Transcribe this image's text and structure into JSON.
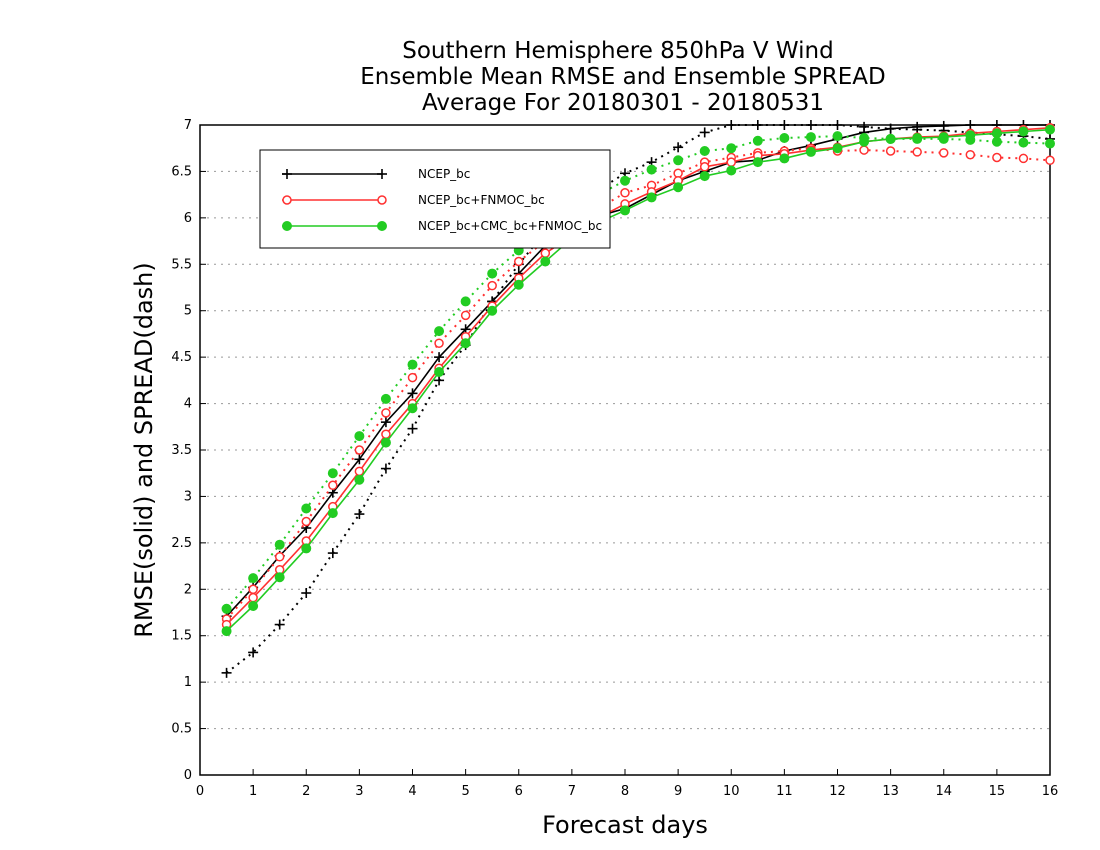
{
  "chart_data": {
    "type": "line",
    "title_lines": [
      "Southern Hemisphere 850hPa V Wind",
      "Ensemble Mean RMSE and Ensemble SPREAD",
      "Average For 20180301 - 20180531"
    ],
    "xlabel": "Forecast days",
    "ylabel": "RMSE(solid) and SPREAD(dash)",
    "xlim": [
      0,
      16
    ],
    "ylim": [
      0,
      7
    ],
    "x_ticks": [
      "0",
      "1",
      "2",
      "3",
      "4",
      "5",
      "6",
      "7",
      "8",
      "9",
      "10",
      "11",
      "12",
      "13",
      "14",
      "15",
      "16"
    ],
    "y_ticks": [
      "0",
      "0.5",
      "1",
      "1.5",
      "2",
      "2.5",
      "3",
      "3.5",
      "4",
      "4.5",
      "5",
      "5.5",
      "6",
      "6.5",
      "7"
    ],
    "grid": "horizontal dotted",
    "legend_position": "top-left",
    "x": [
      0.5,
      1,
      1.5,
      2,
      2.5,
      3,
      3.5,
      4,
      4.5,
      5,
      5.5,
      6,
      6.5,
      7,
      7.5,
      8,
      8.5,
      9,
      9.5,
      10,
      10.5,
      11,
      11.5,
      12,
      12.5,
      13,
      13.5,
      14,
      14.5,
      15,
      15.5,
      16
    ],
    "series": [
      {
        "name": "NCEP_bc",
        "color": "#000000",
        "marker": "plus",
        "rmse": [
          1.71,
          2.02,
          2.36,
          2.66,
          3.04,
          3.4,
          3.8,
          4.11,
          4.5,
          4.8,
          5.1,
          5.4,
          5.7,
          5.93,
          6.02,
          6.1,
          6.25,
          6.4,
          6.5,
          6.6,
          6.62,
          6.72,
          6.78,
          6.85,
          6.92,
          6.96,
          6.98,
          6.99,
          7.0,
          7.0,
          7.0,
          7.0
        ],
        "spread": [
          1.1,
          1.32,
          1.62,
          1.96,
          2.39,
          2.81,
          3.3,
          3.73,
          4.25,
          4.63,
          5.1,
          5.5,
          5.85,
          6.1,
          6.3,
          6.48,
          6.6,
          6.76,
          6.92,
          7.0,
          7.0,
          7.0,
          7.0,
          7.0,
          6.98,
          6.96,
          6.95,
          6.94,
          6.92,
          6.9,
          6.88,
          6.85
        ]
      },
      {
        "name": "NCEP_bc+FNMOC_bc",
        "color": "#ff3030",
        "marker": "open-circle",
        "rmse": [
          1.62,
          1.91,
          2.21,
          2.52,
          2.89,
          3.27,
          3.67,
          4.0,
          4.38,
          4.72,
          5.05,
          5.35,
          5.62,
          5.8,
          6.0,
          6.15,
          6.28,
          6.4,
          6.55,
          6.6,
          6.67,
          6.69,
          6.73,
          6.76,
          6.82,
          6.85,
          6.87,
          6.88,
          6.91,
          6.93,
          6.95,
          6.97
        ],
        "spread": [
          1.68,
          2.0,
          2.35,
          2.73,
          3.12,
          3.5,
          3.9,
          4.28,
          4.65,
          4.95,
          5.27,
          5.53,
          5.75,
          5.95,
          6.1,
          6.27,
          6.35,
          6.48,
          6.6,
          6.65,
          6.7,
          6.72,
          6.75,
          6.72,
          6.73,
          6.72,
          6.71,
          6.7,
          6.68,
          6.65,
          6.64,
          6.62
        ]
      },
      {
        "name": "NCEP_bc+CMC_bc+FNMOC_bc",
        "color": "#22cc22",
        "marker": "filled-circle",
        "rmse": [
          1.55,
          1.82,
          2.13,
          2.44,
          2.82,
          3.18,
          3.58,
          3.95,
          4.34,
          4.65,
          5.0,
          5.28,
          5.53,
          5.78,
          5.95,
          6.08,
          6.22,
          6.33,
          6.45,
          6.51,
          6.6,
          6.64,
          6.71,
          6.75,
          6.82,
          6.85,
          6.86,
          6.87,
          6.89,
          6.91,
          6.93,
          6.95
        ],
        "spread": [
          1.79,
          2.12,
          2.48,
          2.87,
          3.25,
          3.65,
          4.05,
          4.42,
          4.78,
          5.1,
          5.4,
          5.65,
          5.87,
          6.05,
          6.25,
          6.4,
          6.52,
          6.62,
          6.72,
          6.75,
          6.83,
          6.86,
          6.87,
          6.88,
          6.86,
          6.85,
          6.85,
          6.85,
          6.84,
          6.82,
          6.81,
          6.8
        ]
      }
    ]
  }
}
